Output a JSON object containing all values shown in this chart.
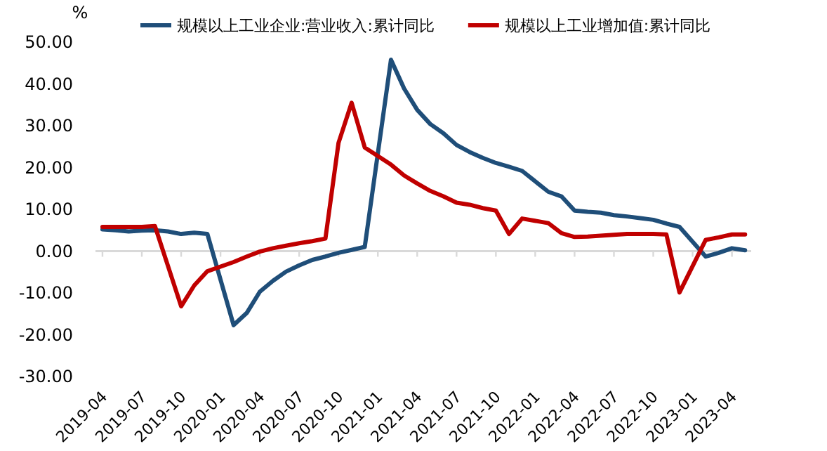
{
  "chart_data": {
    "type": "line",
    "ylabel": "%",
    "legend": "top",
    "x": [
      "2019-04",
      "2019-05",
      "2019-06",
      "2019-07",
      "2019-08",
      "2019-09",
      "2019-10",
      "2019-11",
      "2019-12",
      "2020-02",
      "2020-03",
      "2020-04",
      "2020-05",
      "2020-06",
      "2020-07",
      "2020-08",
      "2020-09",
      "2020-10",
      "2020-11",
      "2020-12",
      "2021-02",
      "2021-03",
      "2021-04",
      "2021-05",
      "2021-06",
      "2021-07",
      "2021-08",
      "2021-09",
      "2021-10",
      "2021-11",
      "2021-12",
      "2022-02",
      "2022-03",
      "2022-04",
      "2022-05",
      "2022-06",
      "2022-07",
      "2022-08",
      "2022-09",
      "2022-10",
      "2022-11",
      "2022-12",
      "2023-02",
      "2023-03",
      "2023-04",
      "2023-05"
    ],
    "xlim": [
      "2019-03-15",
      "2023-05-15"
    ],
    "xticks": [
      "2019-04",
      "2019-07",
      "2019-10",
      "2020-01",
      "2020-04",
      "2020-07",
      "2020-10",
      "2021-01",
      "2021-04",
      "2021-07",
      "2021-10",
      "2022-01",
      "2022-04",
      "2022-07",
      "2022-10",
      "2023-01",
      "2023-04"
    ],
    "ylim": [
      -30,
      50
    ],
    "yticks": [
      {
        "value": 50,
        "label": "50.00"
      },
      {
        "value": 40,
        "label": "40.00"
      },
      {
        "value": 30,
        "label": "30.00"
      },
      {
        "value": 20,
        "label": "20.00"
      },
      {
        "value": 10,
        "label": "10.00"
      },
      {
        "value": 0,
        "label": "0.00"
      },
      {
        "value": -10,
        "label": "-10.00"
      },
      {
        "value": -20,
        "label": "-20.00"
      },
      {
        "value": -30,
        "label": "-30.00"
      }
    ],
    "series": [
      {
        "name": "规模以上工业企业:营业收入:累计同比",
        "color": "#1f4e79",
        "values": [
          5.2,
          5.0,
          4.7,
          4.9,
          5.0,
          4.7,
          4.1,
          4.4,
          4.1,
          -17.7,
          -14.8,
          -9.7,
          -7.1,
          -4.9,
          -3.4,
          -2.1,
          -1.3,
          -0.4,
          0.3,
          1.0,
          45.8,
          38.9,
          33.8,
          30.4,
          28.2,
          25.4,
          23.7,
          22.3,
          21.1,
          20.2,
          19.2,
          14.2,
          13.1,
          9.7,
          9.4,
          9.2,
          8.6,
          8.3,
          7.9,
          7.5,
          6.6,
          5.8,
          -1.3,
          -0.4,
          0.7,
          0.2
        ]
      },
      {
        "name": "规模以上工业增加值:累计同比",
        "color": "#c00000",
        "values": [
          5.8,
          5.8,
          5.8,
          5.8,
          6.0,
          -3.6,
          -13.2,
          -8.2,
          -4.8,
          -2.6,
          -1.3,
          -0.1,
          0.7,
          1.3,
          1.9,
          2.4,
          3.0,
          25.9,
          35.5,
          24.8,
          20.7,
          18.1,
          16.2,
          14.4,
          13.1,
          11.6,
          11.1,
          10.3,
          9.7,
          4.1,
          7.8,
          6.7,
          4.3,
          3.4,
          3.5,
          3.7,
          3.9,
          4.1,
          4.1,
          4.1,
          4.0,
          -9.9,
          2.7,
          3.3,
          4.0,
          4.0
        ]
      }
    ]
  }
}
